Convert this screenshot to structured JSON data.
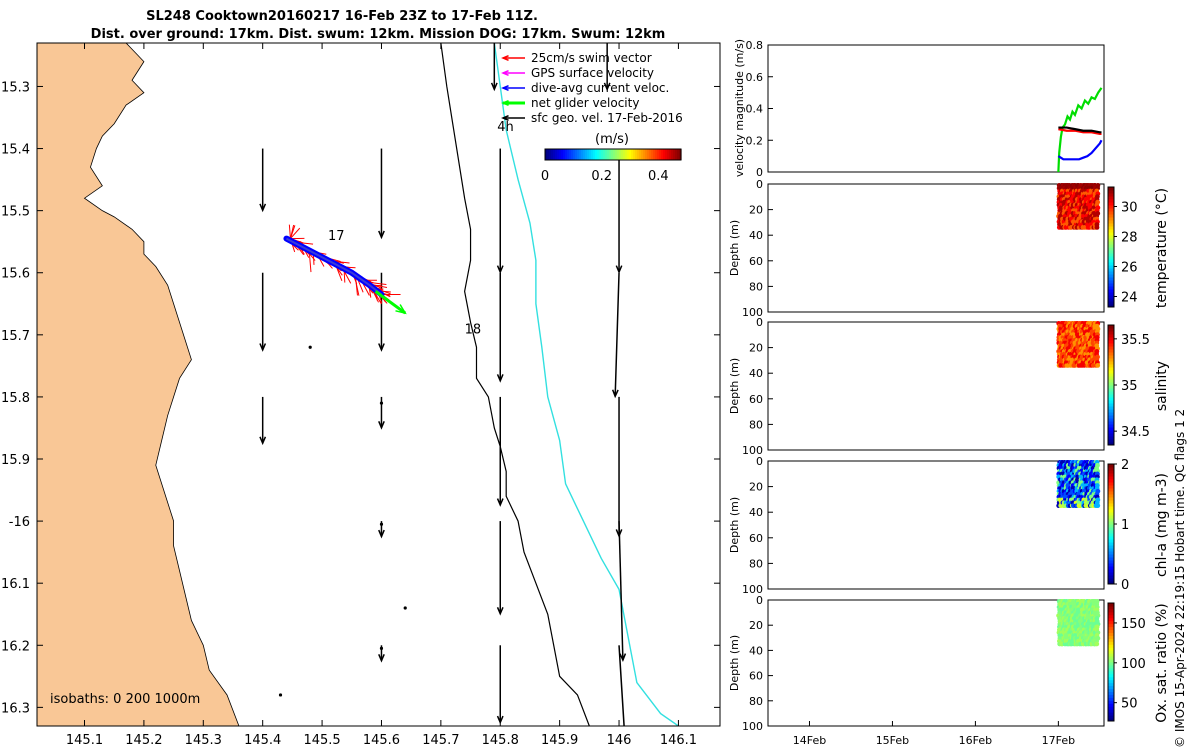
{
  "title": {
    "line1": "SL248 Cooktown20160217 16-Feb 23Z to 17-Feb 11Z.",
    "line2": "Dist. over ground: 17km. Dist. swum: 12km. Mission DOG: 17km. Swum: 12km"
  },
  "footer": "© IMOS 15-Apr-2024 22:19:15 Hobart time. QC flags 1  2",
  "colors": {
    "land": "#f9c796",
    "coast": "#000000",
    "isobath200": "#000000",
    "isobath1000": "#33e0e0",
    "swim": "#ff0000",
    "gps": "#ff00ff",
    "dive": "#0000ff",
    "net": "#00ff00",
    "sfc": "#000000"
  },
  "chart_data": [
    {
      "type": "map",
      "xlim": [
        145.02,
        146.17
      ],
      "ylim": [
        -16.33,
        -15.23
      ],
      "xticks": [
        145.1,
        145.2,
        145.3,
        145.4,
        145.5,
        145.6,
        145.7,
        145.8,
        145.9,
        146,
        146.1
      ],
      "xtick_labels": [
        "145.1",
        "145.2",
        "145.3",
        "145.4",
        "145.5",
        "145.6",
        "145.7",
        "145.8",
        "145.9",
        "146",
        "146.1"
      ],
      "yticks": [
        -15.3,
        -15.4,
        -15.5,
        -15.6,
        -15.7,
        -15.8,
        -15.9,
        -16.0,
        -16.1,
        -16.2,
        -16.3
      ],
      "ytick_labels": [
        "15.3",
        "15.4",
        "15.5",
        "15.6",
        "15.7",
        "15.8",
        "15.9",
        "-16",
        "16.1",
        "16.2",
        "16.3"
      ],
      "isobath_note": "isobaths: 0   200  1000m",
      "legend": [
        "25cm/s swim vector",
        "GPS surface velocity",
        "dive-avg current veloc.",
        "net glider velocity",
        "sfc geo. vel. 17-Feb-2016"
      ],
      "legend_placement": "top-right",
      "colorbar": {
        "title": "(m/s)",
        "ticks": [
          0,
          0.2,
          0.4
        ],
        "tick_labels": [
          "0",
          "0.2",
          "0.4"
        ],
        "range": [
          0,
          0.48
        ]
      },
      "annotations": [
        {
          "text": "4h",
          "x": 145.795,
          "y": -15.372
        },
        {
          "text": "17",
          "x": 145.51,
          "y": -15.547
        },
        {
          "text": "18",
          "x": 145.74,
          "y": -15.698
        }
      ],
      "coastline": [
        [
          145.02,
          -15.23
        ],
        [
          145.17,
          -15.23
        ],
        [
          145.2,
          -15.26
        ],
        [
          145.18,
          -15.29
        ],
        [
          145.2,
          -15.31
        ],
        [
          145.17,
          -15.33
        ],
        [
          145.15,
          -15.36
        ],
        [
          145.13,
          -15.38
        ],
        [
          145.12,
          -15.4
        ],
        [
          145.11,
          -15.43
        ],
        [
          145.13,
          -15.46
        ],
        [
          145.1,
          -15.48
        ],
        [
          145.13,
          -15.5
        ],
        [
          145.15,
          -15.51
        ],
        [
          145.18,
          -15.53
        ],
        [
          145.2,
          -15.55
        ],
        [
          145.2,
          -15.57
        ],
        [
          145.22,
          -15.59
        ],
        [
          145.24,
          -15.62
        ],
        [
          145.25,
          -15.65
        ],
        [
          145.26,
          -15.68
        ],
        [
          145.27,
          -15.71
        ],
        [
          145.28,
          -15.74
        ],
        [
          145.26,
          -15.77
        ],
        [
          145.25,
          -15.8
        ],
        [
          145.24,
          -15.83
        ],
        [
          145.23,
          -15.87
        ],
        [
          145.22,
          -15.91
        ],
        [
          145.23,
          -15.94
        ],
        [
          145.24,
          -15.97
        ],
        [
          145.25,
          -16.0
        ],
        [
          145.25,
          -16.04
        ],
        [
          145.26,
          -16.08
        ],
        [
          145.27,
          -16.12
        ],
        [
          145.28,
          -16.16
        ],
        [
          145.3,
          -16.2
        ],
        [
          145.31,
          -16.24
        ],
        [
          145.34,
          -16.28
        ],
        [
          145.36,
          -16.33
        ],
        [
          145.02,
          -16.33
        ]
      ],
      "isobath_200": [
        [
          145.7,
          -15.23
        ],
        [
          145.71,
          -15.3
        ],
        [
          145.72,
          -15.36
        ],
        [
          145.73,
          -15.42
        ],
        [
          145.74,
          -15.48
        ],
        [
          145.75,
          -15.53
        ],
        [
          145.75,
          -15.58
        ],
        [
          145.74,
          -15.63
        ],
        [
          145.75,
          -15.68
        ],
        [
          145.76,
          -15.72
        ],
        [
          145.76,
          -15.77
        ],
        [
          145.78,
          -15.8
        ],
        [
          145.79,
          -15.85
        ],
        [
          145.8,
          -15.88
        ],
        [
          145.81,
          -15.92
        ],
        [
          145.81,
          -15.96
        ],
        [
          145.83,
          -16.0
        ],
        [
          145.84,
          -16.05
        ],
        [
          145.86,
          -16.1
        ],
        [
          145.88,
          -16.15
        ],
        [
          145.89,
          -16.2
        ],
        [
          145.9,
          -16.25
        ],
        [
          145.93,
          -16.28
        ],
        [
          145.95,
          -16.33
        ]
      ],
      "isobath_1000": [
        [
          145.79,
          -15.23
        ],
        [
          145.8,
          -15.3
        ],
        [
          145.81,
          -15.37
        ],
        [
          145.83,
          -15.45
        ],
        [
          145.85,
          -15.52
        ],
        [
          145.86,
          -15.58
        ],
        [
          145.86,
          -15.65
        ],
        [
          145.87,
          -15.72
        ],
        [
          145.88,
          -15.8
        ],
        [
          145.9,
          -15.87
        ],
        [
          145.91,
          -15.94
        ],
        [
          145.94,
          -16.0
        ],
        [
          145.97,
          -16.06
        ],
        [
          146.0,
          -16.11
        ],
        [
          146.01,
          -16.16
        ],
        [
          146.02,
          -16.21
        ],
        [
          146.03,
          -16.26
        ],
        [
          146.07,
          -16.31
        ],
        [
          146.1,
          -16.33
        ]
      ],
      "glider_track": [
        [
          145.44,
          -15.545
        ],
        [
          145.5,
          -15.575
        ],
        [
          145.55,
          -15.6
        ],
        [
          145.58,
          -15.62
        ],
        [
          145.6,
          -15.635
        ]
      ],
      "net_velocity": {
        "start": [
          145.59,
          -15.63
        ],
        "end": [
          145.64,
          -15.665
        ]
      },
      "sfc_vectors": [
        {
          "x": 145.4,
          "y": -15.4,
          "u": 0.0,
          "v": -0.16
        },
        {
          "x": 145.6,
          "y": -15.4,
          "u": 0.0,
          "v": -0.23
        },
        {
          "x": 145.8,
          "y": -15.4,
          "u": 0.0,
          "v": -0.32
        },
        {
          "x": 146.0,
          "y": -15.4,
          "u": 0.0,
          "v": -0.32
        },
        {
          "x": 145.4,
          "y": -15.6,
          "u": 0.0,
          "v": -0.2
        },
        {
          "x": 145.6,
          "y": -15.6,
          "u": 0.0,
          "v": -0.2
        },
        {
          "x": 145.8,
          "y": -15.6,
          "u": 0.0,
          "v": -0.28
        },
        {
          "x": 146.0,
          "y": -15.6,
          "u": -0.01,
          "v": -0.32
        },
        {
          "x": 145.4,
          "y": -15.8,
          "u": 0.0,
          "v": -0.12
        },
        {
          "x": 145.6,
          "y": -15.8,
          "u": 0.0,
          "v": -0.08
        },
        {
          "x": 145.8,
          "y": -15.8,
          "u": 0.0,
          "v": -0.28
        },
        {
          "x": 146.0,
          "y": -15.8,
          "u": 0.0,
          "v": -0.36
        },
        {
          "x": 145.6,
          "y": -16.0,
          "u": 0.0,
          "v": -0.04
        },
        {
          "x": 145.8,
          "y": -16.0,
          "u": 0.0,
          "v": -0.24
        },
        {
          "x": 146.0,
          "y": -16.0,
          "u": 0.01,
          "v": -0.36
        },
        {
          "x": 145.6,
          "y": -16.2,
          "u": 0.0,
          "v": -0.04
        },
        {
          "x": 145.8,
          "y": -16.2,
          "u": 0.0,
          "v": -0.2
        },
        {
          "x": 146.0,
          "y": -16.2,
          "u": 0.02,
          "v": -0.32
        },
        {
          "x": 145.79,
          "y": -15.23,
          "u": 0.0,
          "v": -0.12
        },
        {
          "x": 145.98,
          "y": -15.23,
          "u": 0.0,
          "v": -0.12
        }
      ]
    },
    {
      "type": "line",
      "ylabel": "velocity magnitude (m/s)",
      "ylim": [
        0,
        0.8
      ],
      "yticks": [
        0,
        0.2,
        0.4,
        0.6,
        0.8
      ],
      "ytick_labels": [
        "0",
        "0.2",
        "0.4",
        "0.6",
        "0.8"
      ],
      "xlim": [
        13.5,
        17.55
      ],
      "series": [
        {
          "color": "#00dd00",
          "x": [
            17.0,
            17.01,
            17.03,
            17.05,
            17.08,
            17.11,
            17.14,
            17.17,
            17.2,
            17.24,
            17.28,
            17.32,
            17.36,
            17.4,
            17.44,
            17.48,
            17.52
          ],
          "y": [
            0.0,
            0.12,
            0.22,
            0.28,
            0.3,
            0.35,
            0.33,
            0.38,
            0.36,
            0.42,
            0.4,
            0.45,
            0.43,
            0.47,
            0.46,
            0.5,
            0.53
          ]
        },
        {
          "color": "#0000ff",
          "x": [
            17.0,
            17.03,
            17.06,
            17.1,
            17.15,
            17.2,
            17.25,
            17.3,
            17.35,
            17.4,
            17.45,
            17.5,
            17.52
          ],
          "y": [
            0.1,
            0.09,
            0.08,
            0.08,
            0.08,
            0.08,
            0.08,
            0.09,
            0.1,
            0.12,
            0.15,
            0.18,
            0.2
          ]
        },
        {
          "color": "#ff0000",
          "x": [
            17.0,
            17.1,
            17.2,
            17.3,
            17.4,
            17.5,
            17.52
          ],
          "y": [
            0.27,
            0.26,
            0.26,
            0.25,
            0.25,
            0.24,
            0.24
          ]
        },
        {
          "color": "#000000",
          "x": [
            17.0,
            17.1,
            17.2,
            17.3,
            17.4,
            17.5,
            17.52
          ],
          "y": [
            0.28,
            0.28,
            0.27,
            0.26,
            0.26,
            0.25,
            0.25
          ]
        }
      ]
    },
    {
      "type": "scatter",
      "variable": "temperature",
      "ylabel": "Depth (m)",
      "cbar_label": "temperature (°C)",
      "ylim": [
        0,
        100
      ],
      "yticks": [
        0,
        20,
        40,
        60,
        80,
        100
      ],
      "ytick_labels": [
        "0",
        "20",
        "40",
        "60",
        "80",
        "100"
      ],
      "clim": [
        23.3,
        31.3
      ],
      "cbar_ticks": [
        24,
        26,
        28,
        30
      ],
      "cbar_tick_labels": [
        "24",
        "26",
        "28",
        "30"
      ],
      "x_range": [
        17.0,
        17.48
      ],
      "depth_range": [
        0,
        35
      ],
      "values": [
        29.6,
        30.3,
        30.9
      ]
    },
    {
      "type": "scatter",
      "variable": "salinity",
      "ylabel": "Depth (m)",
      "cbar_label": "salinity",
      "ylim": [
        0,
        100
      ],
      "yticks": [
        0,
        20,
        40,
        60,
        80,
        100
      ],
      "ytick_labels": [
        "0",
        "20",
        "40",
        "60",
        "80",
        "100"
      ],
      "clim": [
        34.35,
        35.65
      ],
      "cbar_ticks": [
        34.5,
        35,
        35.5
      ],
      "cbar_tick_labels": [
        "34.5",
        "35",
        "35.5"
      ],
      "x_range": [
        17.0,
        17.48
      ],
      "depth_range": [
        0,
        35
      ],
      "values": [
        35.3,
        35.4,
        35.5
      ]
    },
    {
      "type": "scatter",
      "variable": "chl-a",
      "ylabel": "Depth (m)",
      "cbar_label": "chl-a (mg m-3)",
      "ylim": [
        0,
        100
      ],
      "yticks": [
        0,
        20,
        40,
        60,
        80,
        100
      ],
      "ytick_labels": [
        "0",
        "20",
        "40",
        "60",
        "80",
        "100"
      ],
      "clim": [
        0,
        2
      ],
      "cbar_ticks": [
        0,
        1,
        2
      ],
      "cbar_tick_labels": [
        "0",
        "1",
        "2"
      ],
      "x_range": [
        17.0,
        17.48
      ],
      "depth_range": [
        0,
        36
      ],
      "values": [
        0.1,
        0.25,
        0.4,
        0.6,
        1.0
      ]
    },
    {
      "type": "scatter",
      "variable": "oxygen",
      "ylabel": "Depth (m)",
      "cbar_label": "Ox. sat. ratio (%)",
      "ylim": [
        0,
        100
      ],
      "yticks": [
        0,
        20,
        40,
        60,
        80,
        100
      ],
      "ytick_labels": [
        "0",
        "20",
        "40",
        "60",
        "80",
        "100"
      ],
      "clim": [
        27,
        175
      ],
      "cbar_ticks": [
        50,
        100,
        150
      ],
      "cbar_tick_labels": [
        "50",
        "100",
        "150"
      ],
      "x_range": [
        17.0,
        17.48
      ],
      "depth_range": [
        0,
        36
      ],
      "values": [
        98,
        102,
        106
      ],
      "xticks": [
        14,
        15,
        16,
        17
      ],
      "xtick_labels": [
        "14Feb",
        "15Feb",
        "16Feb",
        "17Feb"
      ]
    }
  ]
}
